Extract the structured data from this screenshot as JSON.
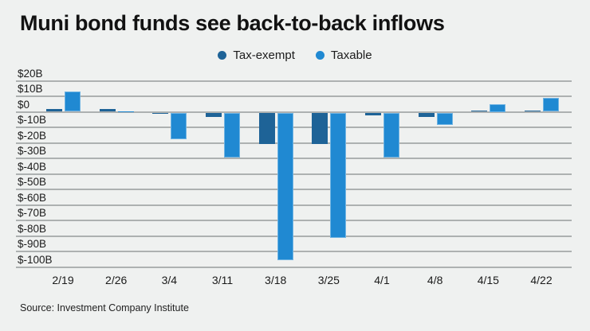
{
  "title": "Muni bond funds see back-to-back inflows",
  "source": "Source: Investment Company Institute",
  "legend": [
    {
      "label": "Tax-exempt",
      "color": "#1e6397"
    },
    {
      "label": "Taxable",
      "color": "#2089d2"
    }
  ],
  "colors": {
    "background": "#eff1f0",
    "gridline": "#adb1b1",
    "tax_exempt": "#1e6397",
    "taxable": "#2089d2",
    "taxable_edge": "#7db9e3",
    "text": "#1a1a1a"
  },
  "chart_data": {
    "type": "bar",
    "title": "Muni bond funds see back-to-back inflows",
    "categories": [
      "2/19",
      "2/26",
      "3/4",
      "3/11",
      "3/18",
      "3/25",
      "4/1",
      "4/8",
      "4/15",
      "4/22"
    ],
    "series": [
      {
        "name": "Tax-exempt",
        "color": "#1e6397",
        "values": [
          2,
          2,
          -1,
          -3,
          -20,
          -20,
          -2,
          -3,
          1,
          1
        ]
      },
      {
        "name": "Taxable",
        "color": "#2089d2",
        "values": [
          13,
          0.5,
          -17,
          -29,
          -95,
          -81,
          -29,
          -8,
          5,
          9
        ]
      }
    ],
    "xlabel": "",
    "ylabel": "",
    "ylim": [
      -100,
      20
    ],
    "ytick_step": 10,
    "ytick_labels": [
      "$20B",
      "$10B",
      "$0",
      "$-10B",
      "$-20B",
      "$-30B",
      "$-40B",
      "$-50B",
      "$-60B",
      "$-70B",
      "$-80B",
      "$-90B",
      "$-100B"
    ],
    "grid": true,
    "legend_position": "top-center",
    "units": "billions USD"
  }
}
